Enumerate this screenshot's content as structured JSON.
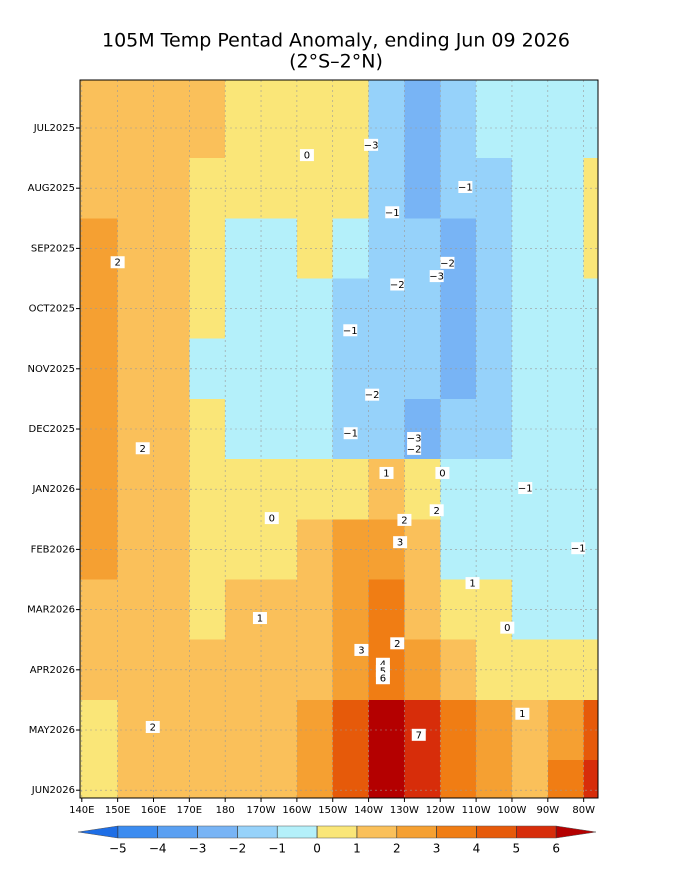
{
  "chart_data": {
    "type": "heatmap",
    "title": "105M Temp Pentad Anomaly, ending Jun 09 2026",
    "subtitle": "(2°S–2°N)",
    "xlim": [
      139.5,
      284
    ],
    "xticks": [
      {
        "value": 140,
        "label": "140E"
      },
      {
        "value": 150,
        "label": "150E"
      },
      {
        "value": 160,
        "label": "160E"
      },
      {
        "value": 170,
        "label": "170E"
      },
      {
        "value": 180,
        "label": "180"
      },
      {
        "value": 190,
        "label": "170W"
      },
      {
        "value": 200,
        "label": "160W"
      },
      {
        "value": 210,
        "label": "150W"
      },
      {
        "value": 220,
        "label": "140W"
      },
      {
        "value": 230,
        "label": "130W"
      },
      {
        "value": 240,
        "label": "120W"
      },
      {
        "value": 250,
        "label": "110W"
      },
      {
        "value": 260,
        "label": "100W"
      },
      {
        "value": 270,
        "label": "90W"
      },
      {
        "value": 280,
        "label": "80W"
      }
    ],
    "x_edges": [
      140,
      150,
      160,
      170,
      180,
      190,
      200,
      210,
      220,
      230,
      240,
      250,
      260,
      270,
      280,
      284
    ],
    "categories": [
      "JUL2025",
      "AUG2025",
      "SEP2025",
      "OCT2025",
      "NOV2025",
      "DEC2025",
      "JAN2026",
      "FEB2026",
      "MAR2026",
      "APR2026",
      "MAY2026",
      "JUN2026"
    ],
    "values": [
      [
        1.5,
        1.5,
        1.5,
        1.2,
        0.8,
        0.5,
        0.6,
        0.3,
        -1.5,
        -2.5,
        -1.5,
        -0.7,
        -0.5,
        -0.5,
        -0.3
      ],
      [
        1.5,
        1.5,
        1.5,
        0.8,
        0.5,
        0.5,
        0.5,
        0.2,
        -2,
        -2.5,
        -1.5,
        -1.2,
        -0.6,
        -0.5,
        0.5
      ],
      [
        2.2,
        1.5,
        1.2,
        0.6,
        -0.5,
        -0.6,
        0.5,
        -0.8,
        -1.5,
        -1.5,
        -2.5,
        -1.5,
        -0.5,
        -0.5,
        0.5
      ],
      [
        2.2,
        1.5,
        1.2,
        0.5,
        -0.5,
        -0.6,
        -0.5,
        -1.2,
        -1.5,
        -1.5,
        -2.5,
        -1.5,
        -0.5,
        -0.5,
        -0.3
      ],
      [
        2.2,
        1.5,
        1.2,
        -0.5,
        -0.5,
        -0.5,
        -0.5,
        -1.2,
        -1.5,
        -1.5,
        -2.2,
        -1.5,
        -0.5,
        -0.5,
        -0.5
      ],
      [
        2.2,
        1.5,
        1.2,
        0.5,
        -0.5,
        -0.5,
        -0.5,
        -1.2,
        -1.5,
        -2.2,
        -1.5,
        -1.2,
        -0.5,
        -0.5,
        -0.6
      ],
      [
        2.2,
        1.5,
        1.2,
        0.6,
        0.5,
        0.5,
        0.6,
        0.8,
        1.2,
        0.5,
        -0.5,
        -0.5,
        -0.6,
        -0.6,
        -0.5
      ],
      [
        2.2,
        1.5,
        1.2,
        0.6,
        0.5,
        0.8,
        1.2,
        2.2,
        2.5,
        1.5,
        -0.5,
        -0.5,
        -0.5,
        -0.5,
        -0.5
      ],
      [
        1.5,
        1.5,
        1.2,
        0.8,
        1.2,
        1.2,
        1.5,
        2.5,
        3.2,
        1.5,
        0.5,
        0.5,
        -0.5,
        -0.5,
        -0.5
      ],
      [
        1.5,
        1.5,
        1.2,
        1.2,
        1.5,
        1.5,
        1.5,
        2.5,
        3.5,
        2.5,
        1.5,
        0.5,
        0.5,
        0.5,
        0.5
      ],
      [
        0.8,
        1.5,
        1.5,
        1.2,
        1.5,
        1.5,
        2.5,
        4.5,
        6.5,
        5.5,
        3.5,
        2.5,
        1.5,
        2.5,
        4.5
      ],
      [
        0.8,
        1.5,
        1.2,
        1.2,
        1.5,
        1.5,
        2.5,
        4.5,
        6.5,
        5.5,
        3.5,
        2.5,
        1.5,
        3.5,
        5.5
      ]
    ],
    "levels": [
      {
        "value": -5,
        "label": "−5"
      },
      {
        "value": -4,
        "label": "−4"
      },
      {
        "value": -3,
        "label": "−3"
      },
      {
        "value": -2,
        "label": "−2"
      },
      {
        "value": -1,
        "label": "−1"
      },
      0,
      1,
      2,
      3,
      4,
      5,
      6
    ],
    "colors": [
      "#1e6ee6",
      "#3c8cf0",
      "#5aa0f2",
      "#78b4f5",
      "#96d2fa",
      "#b4f0fa",
      "#fae678",
      "#fac05a",
      "#f5a032",
      "#f07d14",
      "#e65a0a",
      "#d72d0a",
      "#b40000"
    ],
    "grid": true,
    "contour_labels": [
      {
        "value": -3,
        "label": "−3",
        "x": 220.7,
        "y": 0.28
      },
      {
        "value": 0,
        "x": 202.8,
        "y": 0.45
      },
      {
        "value": -1,
        "label": "−1",
        "x": 247,
        "y": 0.98
      },
      {
        "value": -1,
        "label": "−1",
        "x": 226.6,
        "y": 1.4
      },
      {
        "value": 2,
        "x": 150,
        "y": 2.23
      },
      {
        "value": -2,
        "label": "−2",
        "x": 242,
        "y": 2.24
      },
      {
        "value": -3,
        "label": "−3",
        "x": 239,
        "y": 2.46
      },
      {
        "value": -2,
        "label": "−2",
        "x": 228,
        "y": 2.6
      },
      {
        "value": -1,
        "label": "−1",
        "x": 214.9,
        "y": 3.36
      },
      {
        "value": -2,
        "label": "−2",
        "x": 221,
        "y": 4.43
      },
      {
        "value": -1,
        "label": "−1",
        "x": 215,
        "y": 5.07
      },
      {
        "value": -3,
        "label": "−3",
        "x": 232.7,
        "y": 5.15
      },
      {
        "value": 2,
        "x": 157,
        "y": 5.32
      },
      {
        "value": -2,
        "label": "−2",
        "x": 232.7,
        "y": 5.33
      },
      {
        "value": 1,
        "x": 225,
        "y": 5.73
      },
      {
        "value": 0,
        "x": 240.6,
        "y": 5.73
      },
      {
        "value": -1,
        "label": "−1",
        "x": 263.7,
        "y": 5.98
      },
      {
        "value": 2,
        "x": 239,
        "y": 6.35
      },
      {
        "value": 0,
        "x": 193,
        "y": 6.48
      },
      {
        "value": 2,
        "x": 230,
        "y": 6.51
      },
      {
        "value": 3,
        "x": 228.8,
        "y": 6.88
      },
      {
        "value": -1,
        "label": "−1",
        "x": 278.5,
        "y": 6.98
      },
      {
        "value": 1,
        "x": 249,
        "y": 7.56
      },
      {
        "value": 1,
        "x": 189.7,
        "y": 8.14
      },
      {
        "value": 0,
        "x": 258.7,
        "y": 8.3
      },
      {
        "value": 2,
        "x": 228,
        "y": 8.56
      },
      {
        "value": 3,
        "x": 218,
        "y": 8.67
      },
      {
        "value": 4,
        "x": 224,
        "y": 8.9
      },
      {
        "value": 5,
        "x": 224,
        "y": 9.02
      },
      {
        "value": 6,
        "x": 224,
        "y": 9.14
      },
      {
        "value": 1,
        "x": 262.9,
        "y": 9.73
      },
      {
        "value": 2,
        "x": 159.8,
        "y": 9.95
      },
      {
        "value": 7,
        "x": 234,
        "y": 10.08
      }
    ]
  }
}
